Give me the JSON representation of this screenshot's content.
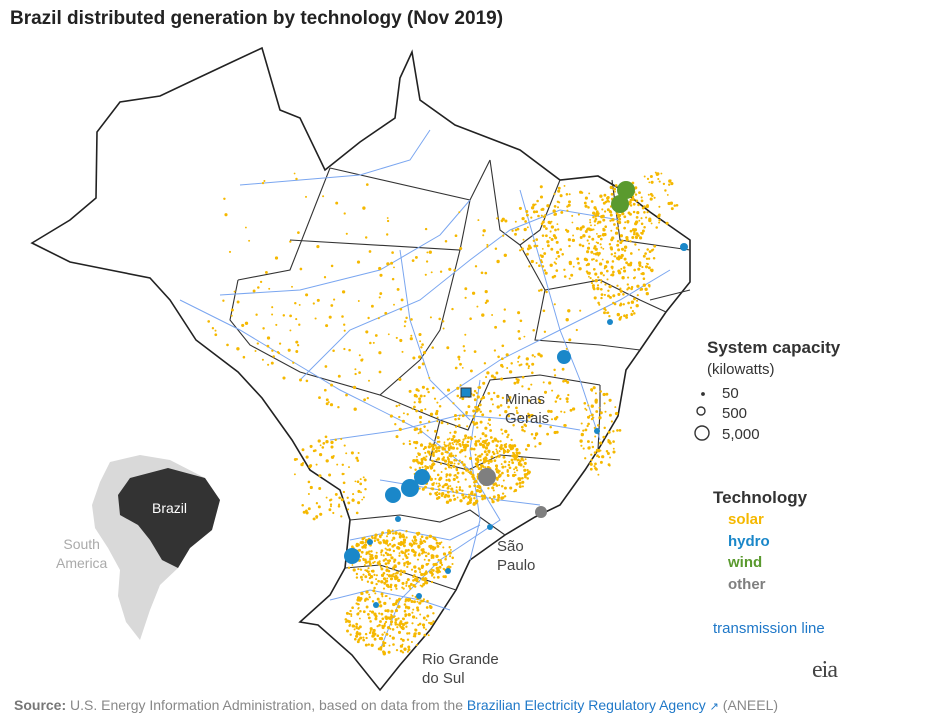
{
  "title": "Brazil distributed generation by technology (Nov 2019)",
  "state_labels": {
    "minas_gerais": [
      "Minas",
      "Gerais"
    ],
    "sao_paulo": [
      "São",
      "Paulo"
    ],
    "rio_grande_do_sul": [
      "Rio Grande",
      "do Sul"
    ]
  },
  "legend": {
    "capacity_title": "System capacity",
    "capacity_unit": "(kilowatts)",
    "capacity_values": [
      "50",
      "500",
      "5,000"
    ],
    "technology_title": "Technology",
    "technologies": [
      {
        "label": "solar",
        "color": "#f5b800"
      },
      {
        "label": "hydro",
        "color": "#1a87c9"
      },
      {
        "label": "wind",
        "color": "#5a9a2e"
      },
      {
        "label": "other",
        "color": "#7f7f7f"
      }
    ],
    "transmission_label": "transmission line",
    "transmission_color": "#1f78c8"
  },
  "inset": {
    "continent_label": [
      "South",
      "America"
    ],
    "country_label": "Brazil"
  },
  "logo_text": "eia",
  "source": {
    "prefix": "Source:",
    "text": "U.S. Energy Information Administration, based on data from the",
    "link_text": "Brazilian Electricity Regulatory Agency",
    "suffix": "(ANEEL)"
  }
}
